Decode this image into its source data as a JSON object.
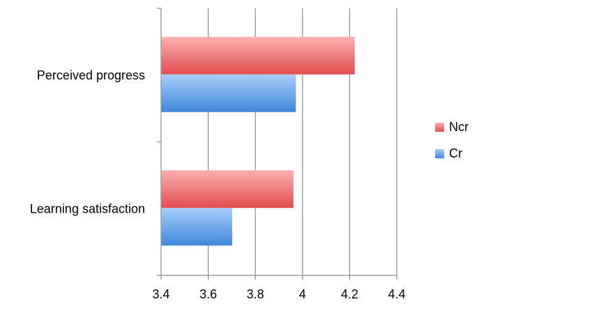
{
  "chart_data": {
    "type": "bar",
    "orientation": "horizontal",
    "categories": [
      "Perceived progress",
      "Learning satisfaction"
    ],
    "series": [
      {
        "name": "Ncr",
        "values": [
          4.22,
          3.96
        ],
        "color": "#e8585a"
      },
      {
        "name": "Cr",
        "values": [
          3.97,
          3.7
        ],
        "color": "#4a90e2"
      }
    ],
    "xlim": [
      3.4,
      4.4
    ],
    "x_ticks": [
      "3.4",
      "3.6",
      "3.8",
      "4",
      "4.2",
      "4.4"
    ],
    "x_tick_values": [
      3.4,
      3.6,
      3.8,
      4.0,
      4.2,
      4.4
    ],
    "grid": true,
    "legend_position": "right",
    "title": "",
    "xlabel": "",
    "ylabel": ""
  }
}
